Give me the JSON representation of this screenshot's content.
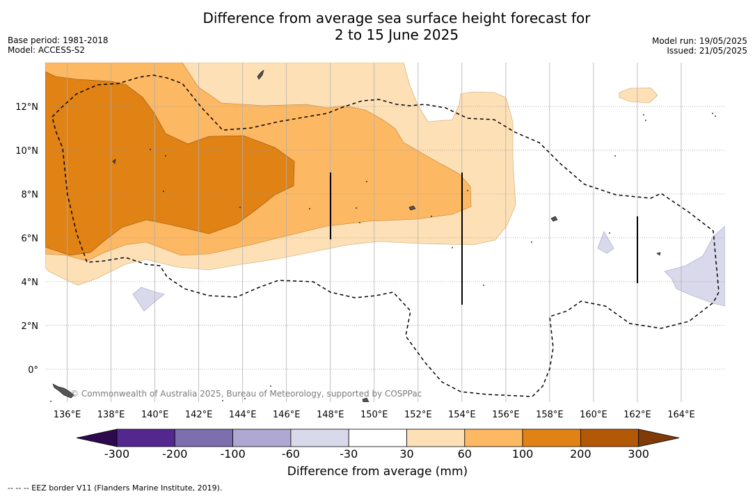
{
  "header": {
    "title_line1": "Difference from average sea surface height forecast for",
    "title_line2": "2 to 15 June 2025",
    "base_period": "Base period: 1981-2018",
    "model": "Model: ACCESS-S2",
    "model_run": "Model run: 19/05/2025",
    "issued": "Issued: 21/05/2025"
  },
  "map": {
    "lon_range": [
      135,
      166
    ],
    "lat_range": [
      -1.5,
      14
    ],
    "lat_ticks": [
      {
        "value": 12,
        "label": "12°N"
      },
      {
        "value": 10,
        "label": "10°N"
      },
      {
        "value": 8,
        "label": "8°N"
      },
      {
        "value": 6,
        "label": "6°N"
      },
      {
        "value": 4,
        "label": "4°N"
      },
      {
        "value": 2,
        "label": "2°N"
      },
      {
        "value": 0,
        "label": "0°"
      }
    ],
    "lon_ticks": [
      {
        "value": 136,
        "label": "136°E"
      },
      {
        "value": 138,
        "label": "138°E"
      },
      {
        "value": 140,
        "label": "140°E"
      },
      {
        "value": 142,
        "label": "142°E"
      },
      {
        "value": 144,
        "label": "144°E"
      },
      {
        "value": 146,
        "label": "146°E"
      },
      {
        "value": 148,
        "label": "148°E"
      },
      {
        "value": 150,
        "label": "150°E"
      },
      {
        "value": 152,
        "label": "152°E"
      },
      {
        "value": 154,
        "label": "154°E"
      },
      {
        "value": 156,
        "label": "156°E"
      },
      {
        "value": 158,
        "label": "158°E"
      },
      {
        "value": 160,
        "label": "160°E"
      },
      {
        "value": 162,
        "label": "162°E"
      },
      {
        "value": 164,
        "label": "164°E"
      }
    ],
    "credit": "© Commonwealth of Australia 2025, Bureau of Meteorology, supported by COSPPac",
    "eez_line_color": "#000000"
  },
  "colorbar": {
    "tick_labels": [
      "-300",
      "-200",
      "-100",
      "-60",
      "-30",
      "30",
      "60",
      "100",
      "200",
      "300"
    ],
    "colors": [
      "#2d0a4e",
      "#54278f",
      "#7d6eae",
      "#afa9d2",
      "#d9d9ec",
      "#ffffff",
      "#fee0b6",
      "#fdb863",
      "#e08214",
      "#b35806",
      "#7f3b08"
    ],
    "title": "Difference from average (mm)"
  },
  "footnote": "--  --  -- EEZ border V11 (Flanders Marine Institute, 2019)."
}
